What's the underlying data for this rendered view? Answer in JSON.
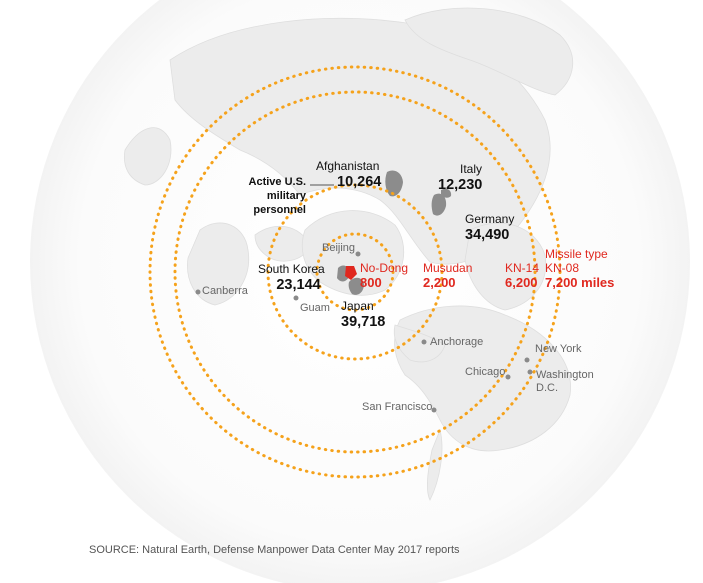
{
  "colors": {
    "ring": "#f5a21b",
    "missile_text": "#e0281f",
    "land": "#ededed",
    "land_shade": "#e2e2e2",
    "country_highlight": "#8c8c8c",
    "north_korea": "#e0281f",
    "city_dot": "#8a8a8a"
  },
  "legend": {
    "personnel_title": "Active U.S. military personnel",
    "personnel_lines": [
      "Active U.S.",
      "military",
      "personnel"
    ]
  },
  "missile_type_label": "Missile type",
  "missiles": [
    {
      "name": "No-Dong",
      "range": "800"
    },
    {
      "name": "Musudan",
      "range": "2,200"
    },
    {
      "name": "KN-14",
      "range": "6,200"
    },
    {
      "name": "KN-08",
      "range": "7,200 miles"
    }
  ],
  "personnel": [
    {
      "country": "Afghanistan",
      "count": "10,264"
    },
    {
      "country": "Italy",
      "count": "12,230"
    },
    {
      "country": "Germany",
      "count": "34,490"
    },
    {
      "country": "South Korea",
      "count": "23,144"
    },
    {
      "country": "Japan",
      "count": "39,718"
    }
  ],
  "cities": [
    "Beijing",
    "Canberra",
    "Guam",
    "Anchorage",
    "Chicago",
    "New York",
    "Washington D.C.",
    "San Francisco"
  ],
  "city_labels": {
    "washington_line1": "Washington",
    "washington_line2": "D.C."
  },
  "source": "SOURCE: Natural Earth, Defense Manpower Data Center May 2017 reports"
}
